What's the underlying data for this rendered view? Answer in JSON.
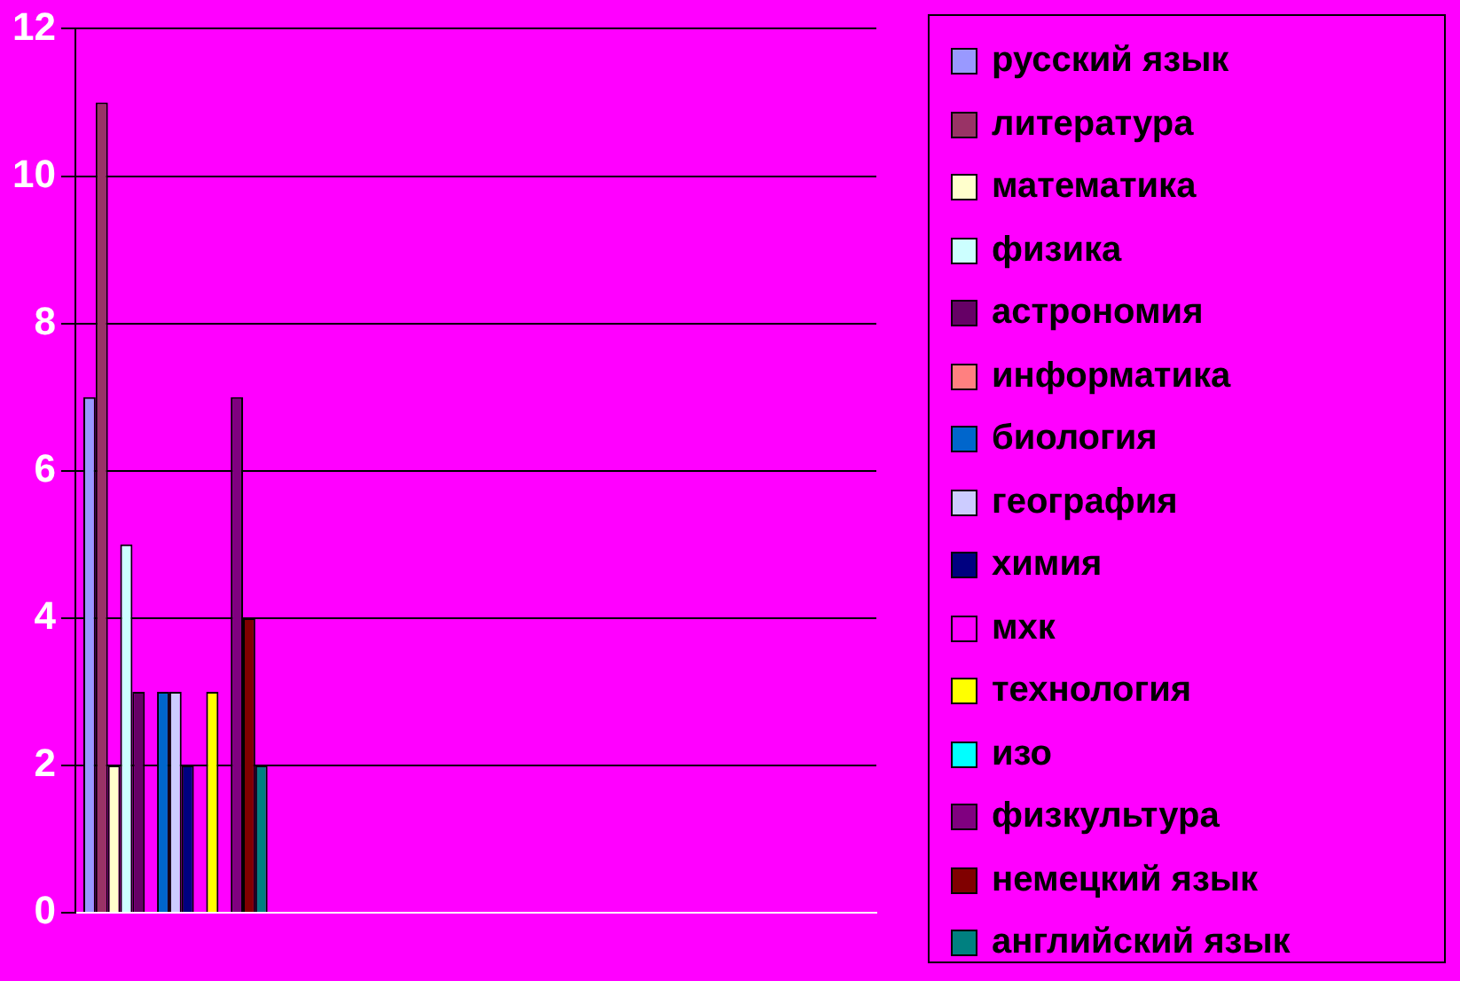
{
  "chart_data": {
    "type": "bar",
    "categories": [
      null,
      null,
      null,
      null
    ],
    "series": [
      {
        "name": "русский язык",
        "color": "#9999ff",
        "values": [
          7,
          null,
          null,
          null
        ]
      },
      {
        "name": "литература",
        "color": "#993366",
        "values": [
          11,
          null,
          null,
          null
        ]
      },
      {
        "name": "математика",
        "color": "#ffffcc",
        "values": [
          2,
          null,
          null,
          null
        ]
      },
      {
        "name": "физика",
        "color": "#ccffff",
        "values": [
          5,
          null,
          null,
          null
        ]
      },
      {
        "name": "астрономия",
        "color": "#660066",
        "values": [
          3,
          null,
          null,
          null
        ]
      },
      {
        "name": "информатика",
        "color": "#ff8080",
        "values": [
          0,
          null,
          null,
          null
        ]
      },
      {
        "name": "биология",
        "color": "#0066cc",
        "values": [
          3,
          null,
          null,
          null
        ]
      },
      {
        "name": "география",
        "color": "#ccccff",
        "values": [
          3,
          null,
          null,
          null
        ]
      },
      {
        "name": "химия",
        "color": "#000080",
        "values": [
          2,
          null,
          null,
          null
        ]
      },
      {
        "name": "мхк",
        "color": "#ff00ff",
        "values": [
          0,
          null,
          null,
          null
        ]
      },
      {
        "name": "технология",
        "color": "#ffff00",
        "values": [
          3,
          null,
          null,
          null
        ]
      },
      {
        "name": "изо",
        "color": "#00ffff",
        "values": [
          0,
          null,
          null,
          null
        ]
      },
      {
        "name": "физкультура",
        "color": "#800080",
        "values": [
          7,
          null,
          null,
          null
        ]
      },
      {
        "name": "немецкий язык",
        "color": "#800000",
        "values": [
          4,
          null,
          null,
          null
        ]
      },
      {
        "name": "английский язык",
        "color": "#008080",
        "values": [
          2,
          null,
          null,
          null
        ]
      }
    ],
    "ylim": [
      0,
      12
    ],
    "yticks": [
      0,
      2,
      4,
      6,
      8,
      10,
      12
    ],
    "grid": "y",
    "legend": "right"
  }
}
